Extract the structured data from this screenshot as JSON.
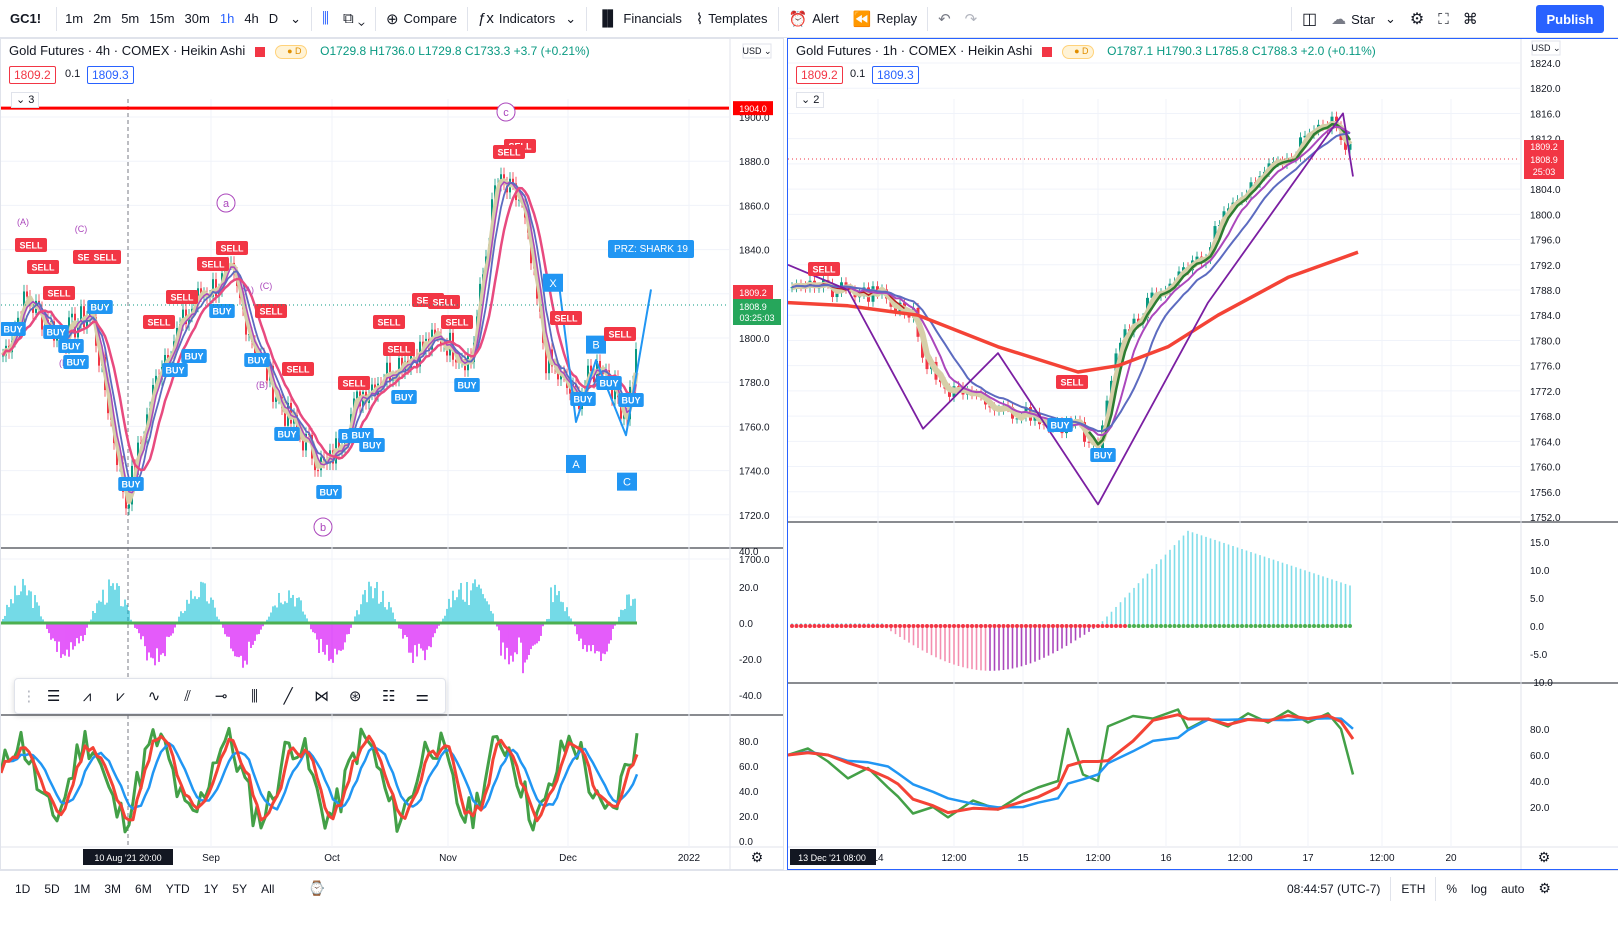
{
  "toolbar": {
    "symbol": "GC1!",
    "intervals": [
      "1m",
      "2m",
      "5m",
      "15m",
      "30m",
      "1h",
      "4h",
      "D"
    ],
    "active_interval": "1h",
    "compare": "Compare",
    "indicators": "Indicators",
    "financials": "Financials",
    "templates": "Templates",
    "alert": "Alert",
    "replay": "Replay",
    "layout": "Star",
    "publish": "Publish"
  },
  "left_chart": {
    "title": "Gold Futures · 4h · COMEX · Heikin Ashi",
    "ohlc": "O1729.8  H1736.0  L1729.8  C1733.3  +3.7 (+0.21%)",
    "bid": "1809.2",
    "spread": "0.1",
    "ask": "1809.3",
    "collapse_count": "3",
    "currency": "USD",
    "price_ticks": [
      "1900.0",
      "1880.0",
      "1860.0",
      "1840.0",
      "1820.0",
      "1800.0",
      "1780.0",
      "1760.0",
      "1740.0",
      "1720.0",
      "1700.0"
    ],
    "hline_label": "1904.0",
    "last_price": "1809.2",
    "last_price2": "1808.9",
    "countdown": "03:25:03",
    "time_labels": [
      "Sep",
      "Oct",
      "Nov",
      "Dec",
      "2022"
    ],
    "crosshair_time": "10 Aug '21  20:00",
    "osc_ticks": [
      "40.0",
      "20.0",
      "0.0",
      "-20.0",
      "-40.0"
    ],
    "rsi_ticks": [
      "80.0",
      "60.0",
      "40.0",
      "20.0",
      "0.0"
    ],
    "wave_labels": [
      "a",
      "b",
      "c"
    ],
    "signals": [
      "SELL",
      "BUY"
    ],
    "markers": [
      "A",
      "B",
      "C",
      "X"
    ],
    "prz_label": "PRZ: SHARK 19",
    "small_labels": [
      "(A)",
      "(C)",
      "(B)",
      "(E)"
    ]
  },
  "right_chart": {
    "title": "Gold Futures · 1h · COMEX · Heikin Ashi",
    "ohlc": "O1787.1  H1790.3  L1785.8  C1788.3  +2.0 (+0.11%)",
    "bid": "1809.2",
    "spread": "0.1",
    "ask": "1809.3",
    "collapse_count": "2",
    "currency": "USD",
    "price_ticks": [
      "1824.0",
      "1820.0",
      "1816.0",
      "1812.0",
      "1808.0",
      "1804.0",
      "1800.0",
      "1796.0",
      "1792.0",
      "1788.0",
      "1784.0",
      "1780.0",
      "1776.0",
      "1772.0",
      "1768.0",
      "1764.0",
      "1760.0",
      "1756.0",
      "1752.0"
    ],
    "last_price": "1809.2",
    "last_price2": "1808.9",
    "countdown": "25:03",
    "time_labels": [
      "14",
      "12:00",
      "15",
      "12:00",
      "16",
      "12:00",
      "17",
      "12:00",
      "20"
    ],
    "crosshair_time": "13 Dec '21  08:00",
    "osc_ticks": [
      "15.0",
      "10.0",
      "5.0",
      "0.0",
      "-5.0",
      "-10.0"
    ],
    "rsi_ticks": [
      "80.0",
      "60.0",
      "40.0",
      "20.0"
    ],
    "signals": [
      "SELL",
      "BUY"
    ]
  },
  "bottom": {
    "ranges": [
      "1D",
      "5D",
      "1M",
      "3M",
      "6M",
      "YTD",
      "1Y",
      "5Y",
      "All"
    ],
    "time": "08:44:57 (UTC-7)",
    "session": "ETH",
    "percent": "%",
    "log": "log",
    "auto": "auto"
  },
  "colors": {
    "accent": "#2962ff",
    "up": "#089981",
    "down": "#f23645",
    "sell": "#f23645",
    "buy": "#2196f3",
    "wave": "#ab47bc"
  }
}
